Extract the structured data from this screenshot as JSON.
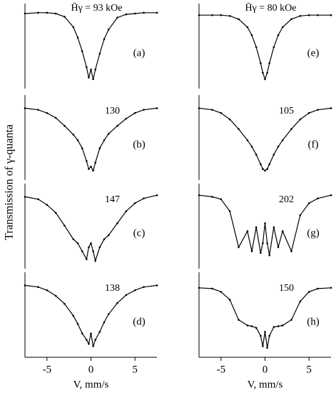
{
  "ylabel": "Transmission of γ-quanta",
  "chart_data": [
    {
      "type": "line",
      "panel": "(a)",
      "field": "H̄γ = 93 kOe",
      "color": "#000000",
      "xlim": [
        -7.5,
        7.5
      ],
      "ylim": [
        0,
        1
      ],
      "x": [
        -7.5,
        -6,
        -5,
        -4,
        -3,
        -2,
        -1.5,
        -1,
        -0.5,
        -0.25,
        0,
        0.25,
        0.5,
        1,
        1.5,
        2,
        3,
        4,
        5,
        6,
        7.5
      ],
      "values": [
        0.92,
        0.93,
        0.93,
        0.92,
        0.88,
        0.75,
        0.62,
        0.45,
        0.25,
        0.12,
        0.22,
        0.1,
        0.22,
        0.42,
        0.6,
        0.72,
        0.87,
        0.91,
        0.92,
        0.93,
        0.93
      ]
    },
    {
      "type": "line",
      "panel": "(b)",
      "field": "130",
      "color": "#000000",
      "xlim": [
        -7.5,
        7.5
      ],
      "ylim": [
        0,
        1
      ],
      "x": [
        -7.5,
        -6,
        -5,
        -4,
        -3,
        -2,
        -1.5,
        -1,
        -0.5,
        -0.25,
        0,
        0.25,
        0.5,
        1,
        1.5,
        2,
        3,
        4,
        5,
        6,
        7.5
      ],
      "values": [
        0.88,
        0.86,
        0.82,
        0.76,
        0.66,
        0.55,
        0.48,
        0.38,
        0.22,
        0.12,
        0.15,
        0.1,
        0.2,
        0.38,
        0.48,
        0.56,
        0.66,
        0.75,
        0.82,
        0.86,
        0.88
      ]
    },
    {
      "type": "line",
      "panel": "(c)",
      "field": "147",
      "color": "#000000",
      "xlim": [
        -7.5,
        7.5
      ],
      "ylim": [
        0,
        1
      ],
      "x": [
        -7.5,
        -6,
        -5,
        -4,
        -3,
        -2,
        -1.5,
        -1,
        -0.5,
        -0.25,
        0,
        0.25,
        0.5,
        1,
        1.5,
        2,
        3,
        4,
        5,
        6,
        7.5
      ],
      "values": [
        0.88,
        0.85,
        0.78,
        0.68,
        0.52,
        0.35,
        0.3,
        0.2,
        0.1,
        0.25,
        0.3,
        0.2,
        0.08,
        0.25,
        0.35,
        0.4,
        0.55,
        0.7,
        0.8,
        0.86,
        0.9
      ]
    },
    {
      "type": "line",
      "panel": "(d)",
      "field": "138",
      "color": "#000000",
      "xlim": [
        -7.5,
        7.5
      ],
      "ylim": [
        0,
        1
      ],
      "xticks": [
        -5,
        0,
        5
      ],
      "xlabel": "V, mm/s",
      "x": [
        -7.5,
        -6,
        -5,
        -4,
        -3,
        -2,
        -1.5,
        -1,
        -0.5,
        -0.25,
        0,
        0.25,
        0.5,
        1,
        1.5,
        2,
        3,
        4,
        5,
        6,
        7.5
      ],
      "values": [
        0.88,
        0.86,
        0.82,
        0.75,
        0.65,
        0.5,
        0.4,
        0.28,
        0.2,
        0.15,
        0.28,
        0.12,
        0.2,
        0.3,
        0.42,
        0.52,
        0.66,
        0.76,
        0.82,
        0.86,
        0.88
      ]
    },
    {
      "type": "line",
      "panel": "(e)",
      "field": "H̄γ = 80 kOe",
      "color": "#000000",
      "xlim": [
        -7.5,
        7.5
      ],
      "ylim": [
        0,
        1
      ],
      "x": [
        -7.5,
        -6,
        -5,
        -4,
        -3,
        -2,
        -1.5,
        -1,
        -0.5,
        -0.25,
        0,
        0.25,
        0.5,
        1,
        1.5,
        2,
        3,
        4,
        5,
        6,
        7.5
      ],
      "values": [
        0.9,
        0.9,
        0.9,
        0.89,
        0.85,
        0.75,
        0.65,
        0.5,
        0.3,
        0.18,
        0.1,
        0.18,
        0.3,
        0.5,
        0.65,
        0.75,
        0.85,
        0.89,
        0.9,
        0.9,
        0.9
      ]
    },
    {
      "type": "line",
      "panel": "(f)",
      "field": "105",
      "color": "#000000",
      "xlim": [
        -7.5,
        7.5
      ],
      "ylim": [
        0,
        1
      ],
      "x": [
        -7.5,
        -6,
        -5,
        -4,
        -3,
        -2,
        -1.5,
        -1,
        -0.5,
        -0.25,
        0,
        0.25,
        0.5,
        1,
        1.5,
        2,
        3,
        4,
        5,
        6,
        7.5
      ],
      "values": [
        0.88,
        0.86,
        0.82,
        0.74,
        0.62,
        0.48,
        0.4,
        0.3,
        0.18,
        0.12,
        0.1,
        0.12,
        0.18,
        0.3,
        0.4,
        0.48,
        0.62,
        0.74,
        0.82,
        0.86,
        0.88
      ]
    },
    {
      "type": "line",
      "panel": "(g)",
      "field": "202",
      "color": "#000000",
      "xlim": [
        -7.5,
        7.5
      ],
      "ylim": [
        0,
        1
      ],
      "x": [
        -7.5,
        -6,
        -5,
        -4,
        -3,
        -2,
        -1.5,
        -1,
        -0.5,
        -0.25,
        0,
        0.25,
        0.5,
        1,
        1.5,
        2,
        3,
        4,
        5,
        6,
        7.5
      ],
      "values": [
        0.9,
        0.88,
        0.85,
        0.7,
        0.25,
        0.45,
        0.2,
        0.5,
        0.18,
        0.3,
        0.55,
        0.3,
        0.15,
        0.5,
        0.25,
        0.45,
        0.2,
        0.65,
        0.8,
        0.86,
        0.9
      ]
    },
    {
      "type": "line",
      "panel": "(h)",
      "field": "150",
      "color": "#000000",
      "xlim": [
        -7.5,
        7.5
      ],
      "ylim": [
        0,
        1
      ],
      "xticks": [
        -5,
        0,
        5
      ],
      "xlabel": "V, mm/s",
      "x": [
        -7.5,
        -6,
        -5,
        -4,
        -3,
        -2,
        -1.5,
        -1,
        -0.5,
        -0.25,
        0,
        0.25,
        0.5,
        1,
        1.5,
        2,
        3,
        4,
        5,
        6,
        7.5
      ],
      "values": [
        0.85,
        0.84,
        0.8,
        0.7,
        0.45,
        0.38,
        0.37,
        0.35,
        0.25,
        0.12,
        0.3,
        0.1,
        0.25,
        0.36,
        0.37,
        0.38,
        0.45,
        0.68,
        0.8,
        0.84,
        0.85
      ]
    }
  ]
}
